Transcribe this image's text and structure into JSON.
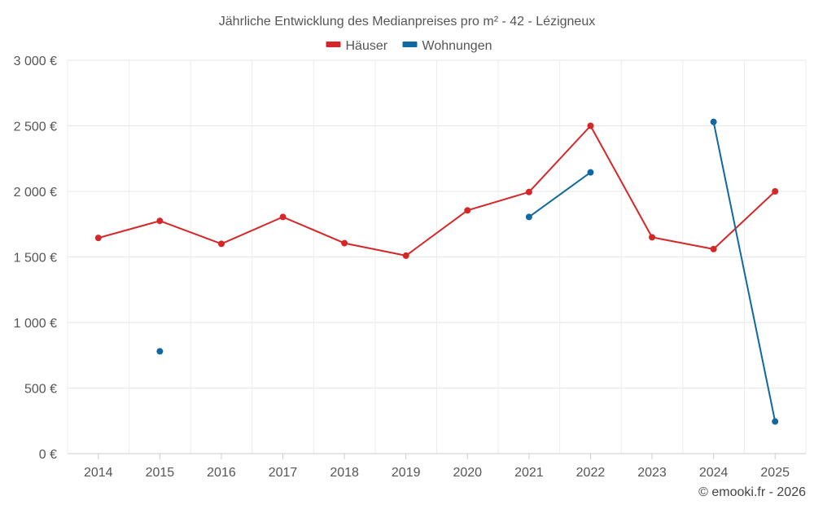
{
  "chart_data": {
    "type": "line",
    "title": "Jährliche Entwicklung des Medianpreises pro m² - 42 - Lézigneux",
    "categories": [
      "2014",
      "2015",
      "2016",
      "2017",
      "2018",
      "2019",
      "2020",
      "2021",
      "2022",
      "2023",
      "2024",
      "2025"
    ],
    "ylim": [
      0,
      3000
    ],
    "yticks": [
      0,
      500,
      1000,
      1500,
      2000,
      2500,
      3000
    ],
    "ytick_labels": [
      "0 €",
      "500 €",
      "1 000 €",
      "1 500 €",
      "2 000 €",
      "2 500 €",
      "3 000 €"
    ],
    "legend_position": "top-center",
    "grid": true,
    "series": [
      {
        "name": "Häuser",
        "color": "#d62728",
        "values": [
          1645,
          1775,
          1600,
          1805,
          1605,
          1510,
          1855,
          1995,
          2500,
          1650,
          1560,
          2000
        ]
      },
      {
        "name": "Wohnungen",
        "color": "#1068a0",
        "values": [
          null,
          780,
          null,
          null,
          null,
          null,
          null,
          1805,
          2145,
          null,
          2530,
          245
        ]
      }
    ],
    "credit": "© emooki.fr - 2026"
  }
}
